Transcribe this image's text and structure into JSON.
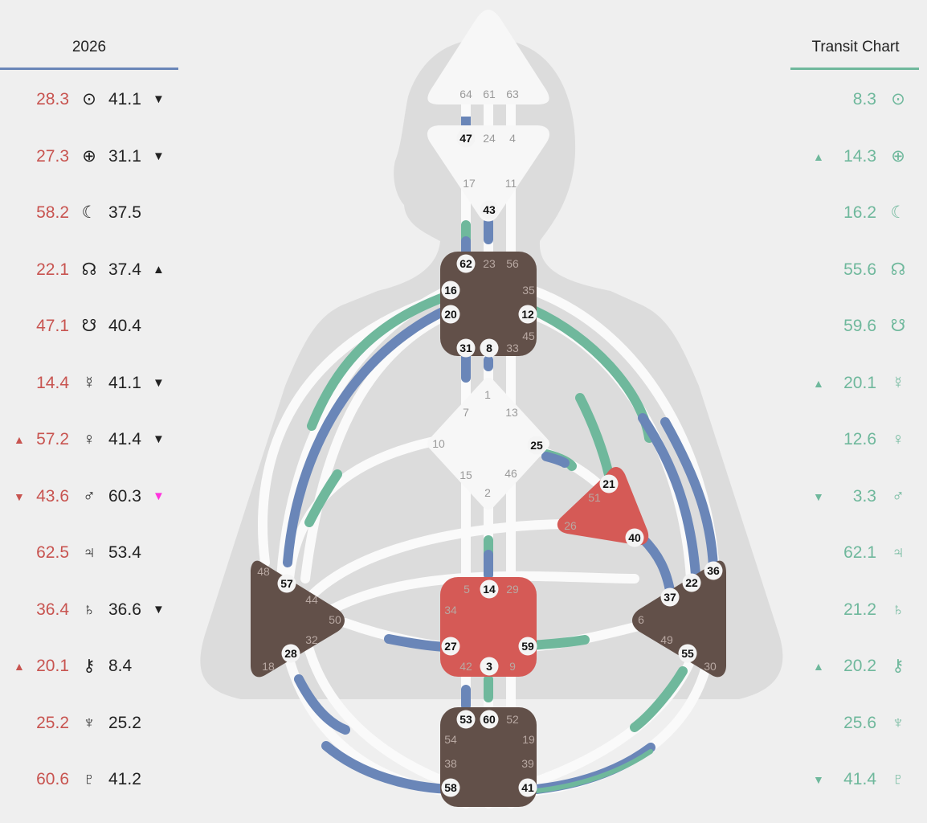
{
  "header": {
    "left_title": "2026",
    "right_title": "Transit Chart"
  },
  "colors": {
    "design": "#c85450",
    "transit": "#6fb89c",
    "personality_line": "#6a86b8",
    "transit_line": "#6fb89c",
    "center_defined_brown": "#625049",
    "center_defined_red": "#d55a56",
    "pink_arrow": "#ff33dd"
  },
  "design_rows": [
    {
      "design_mark": "",
      "design_value": "28.3",
      "planet_icon": "sun-icon",
      "symbol": "⊙",
      "personality_value": "41.1",
      "arrow": "▼"
    },
    {
      "design_mark": "",
      "design_value": "27.3",
      "planet_icon": "earth-icon",
      "symbol": "⊕",
      "personality_value": "31.1",
      "arrow": "▼"
    },
    {
      "design_mark": "",
      "design_value": "58.2",
      "planet_icon": "moon-icon",
      "symbol": "☾",
      "personality_value": "37.5",
      "arrow": ""
    },
    {
      "design_mark": "",
      "design_value": "22.1",
      "planet_icon": "north-node-icon",
      "symbol": "☊",
      "personality_value": "37.4",
      "arrow": "▲"
    },
    {
      "design_mark": "",
      "design_value": "47.1",
      "planet_icon": "south-node-icon",
      "symbol": "☋",
      "personality_value": "40.4",
      "arrow": ""
    },
    {
      "design_mark": "",
      "design_value": "14.4",
      "planet_icon": "mercury-icon",
      "symbol": "☿",
      "personality_value": "41.1",
      "arrow": "▼"
    },
    {
      "design_mark": "▲",
      "design_value": "57.2",
      "planet_icon": "venus-icon",
      "symbol": "♀",
      "personality_value": "41.4",
      "arrow": "▼"
    },
    {
      "design_mark": "▼",
      "design_value": "43.6",
      "planet_icon": "mars-icon",
      "symbol": "♂",
      "personality_value": "60.3",
      "arrow": "▼"
    },
    {
      "design_mark": "",
      "design_value": "62.5",
      "planet_icon": "jupiter-icon",
      "symbol": "♃",
      "personality_value": "53.4",
      "arrow": ""
    },
    {
      "design_mark": "",
      "design_value": "36.4",
      "planet_icon": "saturn-icon",
      "symbol": "♄",
      "personality_value": "36.6",
      "arrow": "▼"
    },
    {
      "design_mark": "▲",
      "design_value": "20.1",
      "planet_icon": "chiron-icon",
      "symbol": "⚷",
      "personality_value": "8.4",
      "arrow": ""
    },
    {
      "design_mark": "",
      "design_value": "25.2",
      "planet_icon": "neptune-icon",
      "symbol": "♆",
      "personality_value": "25.2",
      "arrow": ""
    },
    {
      "design_mark": "",
      "design_value": "60.6",
      "planet_icon": "pluto-icon",
      "symbol": "♇",
      "personality_value": "41.2",
      "arrow": ""
    }
  ],
  "transit_rows": [
    {
      "mark": "",
      "value": "8.3",
      "planet_icon": "sun-icon",
      "symbol": "⊙"
    },
    {
      "mark": "▲",
      "value": "14.3",
      "planet_icon": "earth-icon",
      "symbol": "⊕"
    },
    {
      "mark": "",
      "value": "16.2",
      "planet_icon": "moon-icon",
      "symbol": "☾"
    },
    {
      "mark": "",
      "value": "55.6",
      "planet_icon": "north-node-icon",
      "symbol": "☊"
    },
    {
      "mark": "",
      "value": "59.6",
      "planet_icon": "south-node-icon",
      "symbol": "☋"
    },
    {
      "mark": "▲",
      "value": "20.1",
      "planet_icon": "mercury-icon",
      "symbol": "☿"
    },
    {
      "mark": "",
      "value": "12.6",
      "planet_icon": "venus-icon",
      "symbol": "♀"
    },
    {
      "mark": "▼",
      "value": "3.3",
      "planet_icon": "mars-icon",
      "symbol": "♂"
    },
    {
      "mark": "",
      "value": "62.1",
      "planet_icon": "jupiter-icon",
      "symbol": "♃"
    },
    {
      "mark": "",
      "value": "21.2",
      "planet_icon": "saturn-icon",
      "symbol": "♄"
    },
    {
      "mark": "▲",
      "value": "20.2",
      "planet_icon": "chiron-icon",
      "symbol": "⚷"
    },
    {
      "mark": "",
      "value": "25.6",
      "planet_icon": "neptune-icon",
      "symbol": "♆"
    },
    {
      "mark": "▼",
      "value": "41.4",
      "planet_icon": "pluto-icon",
      "symbol": "♇"
    }
  ],
  "gates": {
    "head": [
      "64",
      "61",
      "63"
    ],
    "ajna": [
      "47",
      "24",
      "4",
      "17",
      "43",
      "11"
    ],
    "throat": [
      "62",
      "23",
      "56",
      "16",
      "35",
      "20",
      "12",
      "45",
      "31",
      "8",
      "33"
    ],
    "g": [
      "1",
      "7",
      "13",
      "10",
      "25",
      "15",
      "46",
      "2"
    ],
    "ego": [
      "21",
      "51",
      "26",
      "40"
    ],
    "spleen": [
      "48",
      "57",
      "44",
      "50",
      "32",
      "28",
      "18"
    ],
    "sacral": [
      "5",
      "14",
      "29",
      "34",
      "27",
      "59",
      "42",
      "3",
      "9"
    ],
    "solar": [
      "36",
      "22",
      "37",
      "6",
      "49",
      "55",
      "30"
    ],
    "root": [
      "53",
      "60",
      "52",
      "54",
      "19",
      "38",
      "39",
      "58",
      "41"
    ]
  }
}
